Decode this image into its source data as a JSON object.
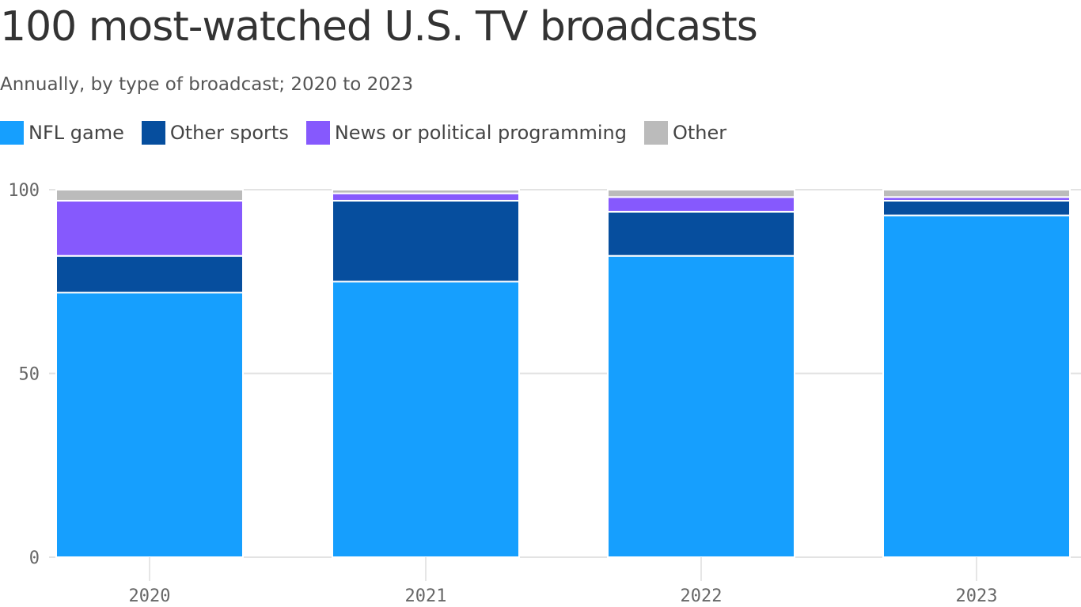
{
  "chart_data": {
    "type": "bar",
    "stacked": true,
    "title": "100 most-watched U.S. TV broadcasts",
    "subtitle": "Annually, by type of broadcast; 2020 to 2023",
    "categories": [
      "2020",
      "2021",
      "2022",
      "2023"
    ],
    "series": [
      {
        "name": "NFL game",
        "color": "#169ffe",
        "values": [
          72,
          75,
          82,
          93
        ]
      },
      {
        "name": "Other sports",
        "color": "#064e9e",
        "values": [
          10,
          22,
          12,
          4
        ]
      },
      {
        "name": "News or political programming",
        "color": "#8659fd",
        "values": [
          15,
          2,
          4,
          1
        ]
      },
      {
        "name": "Other",
        "color": "#bbbbbb",
        "values": [
          3,
          1,
          2,
          2
        ]
      }
    ],
    "yticks": [
      "0",
      "50",
      "100"
    ],
    "ylim": [
      0,
      100
    ],
    "xlabel": "",
    "ylabel": "",
    "grid": true,
    "legend_position": "top-left"
  }
}
